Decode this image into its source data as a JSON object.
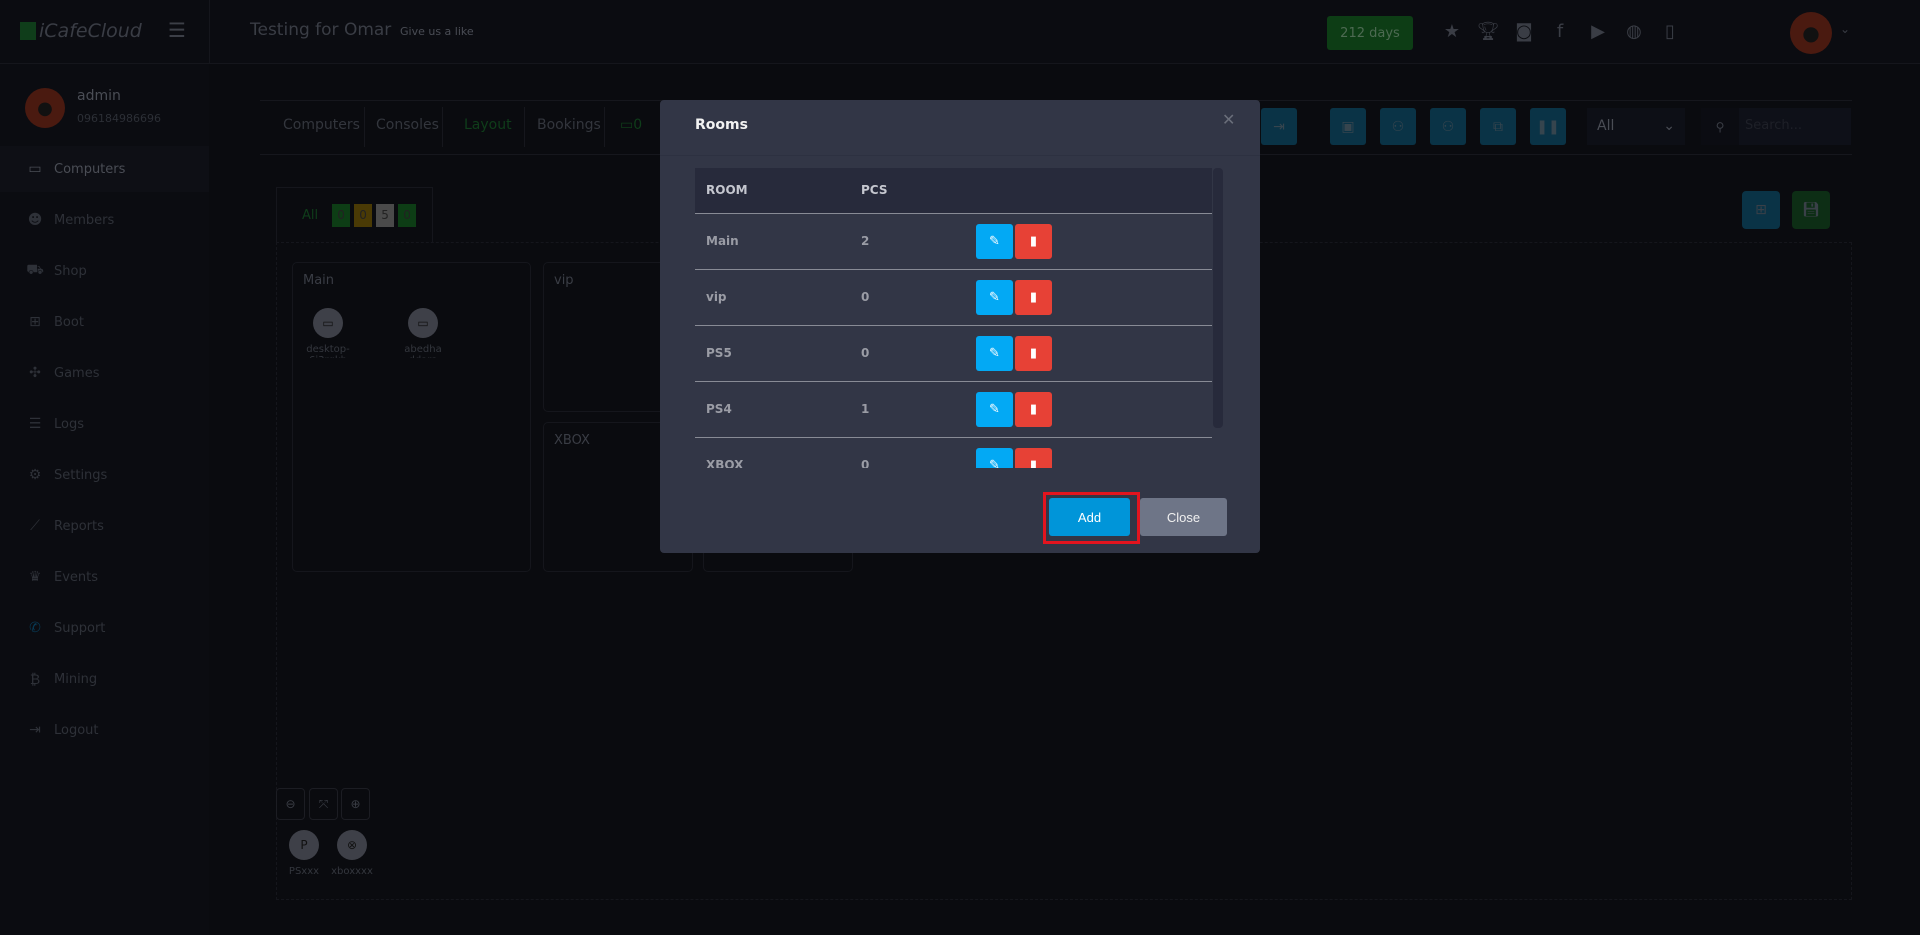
{
  "header": {
    "logo": "iCafeCloud",
    "title": "Testing for Omar",
    "like": "Give us a like",
    "days": "212 days",
    "icons": [
      "leaderboard-icon",
      "trophy-icon",
      "discord-icon",
      "facebook-icon",
      "youtube-icon",
      "globe-icon",
      "book-icon"
    ]
  },
  "user": {
    "name": "admin",
    "phone": "096184986696"
  },
  "sidebar": {
    "items": [
      {
        "label": "Computers",
        "icon": "monitor-icon",
        "glyph": "▭"
      },
      {
        "label": "Members",
        "icon": "users-icon",
        "glyph": "☻"
      },
      {
        "label": "Shop",
        "icon": "cart-icon",
        "glyph": "⛟"
      },
      {
        "label": "Boot",
        "icon": "windows-icon",
        "glyph": "⊞"
      },
      {
        "label": "Games",
        "icon": "gamepad-icon",
        "glyph": "✣"
      },
      {
        "label": "Logs",
        "icon": "list-icon",
        "glyph": "☰"
      },
      {
        "label": "Settings",
        "icon": "gear-icon",
        "glyph": "⚙"
      },
      {
        "label": "Reports",
        "icon": "chart-icon",
        "glyph": "⟋"
      },
      {
        "label": "Events",
        "icon": "crown-icon",
        "glyph": "♛"
      },
      {
        "label": "Support",
        "icon": "phone-icon",
        "glyph": "✆"
      },
      {
        "label": "Mining",
        "icon": "bitcoin-icon",
        "glyph": "₿"
      },
      {
        "label": "Logout",
        "icon": "logout-icon",
        "glyph": "⇥"
      }
    ]
  },
  "toolbar": {
    "tabs": [
      "Computers",
      "Consoles",
      "Layout",
      "Bookings"
    ],
    "online_count": "0",
    "filter_value": "All",
    "search_placeholder": "Search..."
  },
  "filter": {
    "all_label": "All",
    "counts": [
      "0",
      "0",
      "5",
      "0"
    ],
    "colors": [
      "#0d3d15",
      "#4a3a05",
      "#4a4a4a",
      "#0d3d15"
    ]
  },
  "rooms_bg": [
    {
      "name": "Main",
      "pcs": [
        "desktop-6i3rqkb",
        "abedha ddara"
      ]
    },
    {
      "name": "vip"
    },
    {
      "name": "XBOX"
    }
  ],
  "consoles": [
    "PSxxx",
    "xboxxxx"
  ],
  "modal": {
    "title": "Rooms",
    "columns": [
      "ROOM",
      "PCS"
    ],
    "rows": [
      {
        "room": "Main",
        "pcs": "2"
      },
      {
        "room": "vip",
        "pcs": "0"
      },
      {
        "room": "PS5",
        "pcs": "0"
      },
      {
        "room": "PS4",
        "pcs": "1"
      },
      {
        "room": "XBOX",
        "pcs": "0"
      }
    ],
    "add_label": "Add",
    "close_label": "Close",
    "highlight_color": "#e3141e"
  }
}
